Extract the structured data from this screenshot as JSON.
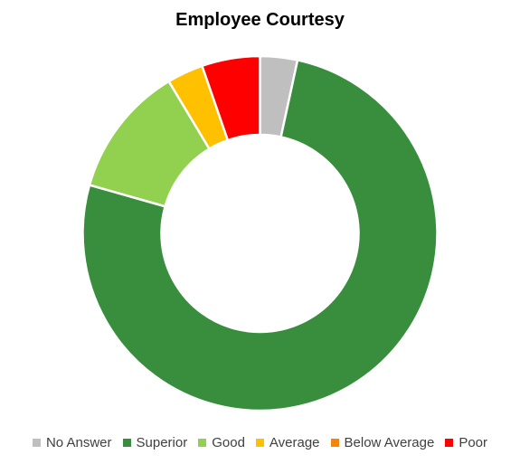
{
  "chart_data": {
    "type": "pie",
    "variant": "donut",
    "title": "Employee Courtesy",
    "categories": [
      "No Answer",
      "Superior",
      "Good",
      "Average",
      "Below Average",
      "Poor"
    ],
    "values": [
      3.4,
      76.0,
      12.0,
      3.3,
      0.0,
      5.3
    ],
    "colors": [
      "#BFBFBF",
      "#388E3C",
      "#92D050",
      "#FFC000",
      "#F5850A",
      "#FF0000"
    ],
    "legend_position": "bottom",
    "start_angle_deg": 0,
    "direction": "clockwise"
  }
}
